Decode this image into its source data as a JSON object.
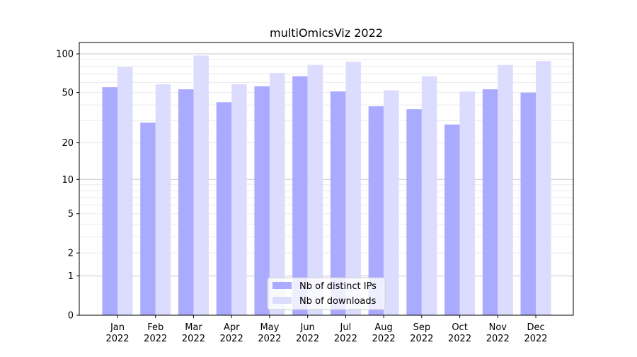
{
  "chart_data": {
    "type": "bar",
    "title": "multiOmicsViz 2022",
    "xlabel": "",
    "ylabel": "",
    "yscale": "log(y+1)",
    "ylim": [
      0,
      120
    ],
    "grid": true,
    "legend_placement": "lower center",
    "categories": [
      "Jan\n2022",
      "Feb\n2022",
      "Mar\n2022",
      "Apr\n2022",
      "May\n2022",
      "Jun\n2022",
      "Jul\n2022",
      "Aug\n2022",
      "Sep\n2022",
      "Oct\n2022",
      "Nov\n2022",
      "Dec\n2022"
    ],
    "yticks": [
      0,
      1,
      2,
      5,
      10,
      20,
      50,
      100
    ],
    "ytick_labels": [
      "0",
      "1",
      "2",
      "5",
      "10",
      "20",
      "50",
      "100"
    ],
    "series": [
      {
        "name": "Nb of distinct IPs",
        "color": "#aaaaff",
        "values": [
          55,
          29,
          53,
          42,
          56,
          67,
          51,
          39,
          37,
          28,
          53,
          50
        ]
      },
      {
        "name": "Nb of downloads",
        "color": "#dcdcff",
        "values": [
          79,
          58,
          97,
          58,
          71,
          82,
          87,
          52,
          67,
          51,
          82,
          88
        ]
      }
    ]
  }
}
